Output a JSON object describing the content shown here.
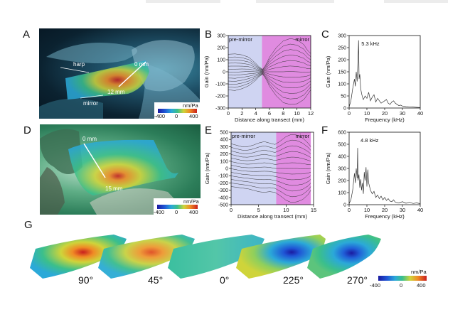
{
  "panels": {
    "A": {
      "label": "A",
      "annotations": [
        "harp",
        "mirror",
        "0 mm",
        "12 mm"
      ],
      "colorbar": {
        "unit": "nm/Pa",
        "ticks": [
          "-400",
          "0",
          "400"
        ]
      }
    },
    "B": {
      "label": "B",
      "region_labels": [
        "pre-mirror",
        "mirror"
      ]
    },
    "C": {
      "label": "C",
      "peak_label": "5.3 kHz"
    },
    "D": {
      "label": "D",
      "annotations": [
        "0 mm",
        "15 mm"
      ],
      "colorbar": {
        "unit": "nm/Pa",
        "ticks": [
          "-400",
          "0",
          "400"
        ]
      }
    },
    "E": {
      "label": "E",
      "region_labels": [
        "pre-mirror",
        "mirror"
      ]
    },
    "F": {
      "label": "F",
      "peak_label": "4.8 kHz"
    },
    "G": {
      "label": "G",
      "angles": [
        "90°",
        "45°",
        "0°",
        "225°",
        "270°"
      ],
      "colorbar": {
        "unit": "nm/Pa",
        "ticks": [
          "-400",
          "0",
          "400"
        ]
      }
    }
  },
  "colors": {
    "premirror_shade": "#cfd4f2",
    "mirror_shade": "#e08be0",
    "trace": "#333333",
    "colormap": [
      "#1a1aa0",
      "#1f56d6",
      "#2ba9d8",
      "#3bbf8b",
      "#cfd43a",
      "#f08a25",
      "#c81e1e"
    ]
  },
  "chart_data": [
    {
      "id": "B",
      "type": "line",
      "title": "",
      "xlabel": "Distance along transect (mm)",
      "ylabel": "Gain (nm/Pa)",
      "xlim": [
        0,
        12
      ],
      "ylim": [
        -300,
        300
      ],
      "xticks": [
        0,
        2,
        4,
        6,
        8,
        10,
        12
      ],
      "yticks": [
        -300,
        -200,
        -100,
        0,
        100,
        200,
        300
      ],
      "regions": [
        {
          "name": "pre-mirror",
          "from": 0,
          "to": 4.9
        },
        {
          "name": "mirror",
          "from": 4.9,
          "to": 12
        }
      ],
      "envelope": {
        "x": [
          0,
          1,
          2,
          3,
          4,
          4.5,
          5,
          5.5,
          6,
          7,
          8,
          9,
          10,
          11,
          11.5,
          12
        ],
        "upper": [
          145,
          148,
          140,
          120,
          70,
          40,
          20,
          60,
          120,
          200,
          255,
          275,
          265,
          225,
          180,
          150
        ],
        "lower": [
          -150,
          -155,
          -140,
          -115,
          -70,
          -40,
          -20,
          -60,
          -120,
          -200,
          -255,
          -270,
          -265,
          -230,
          -190,
          -150
        ]
      },
      "n_traces": 13
    },
    {
      "id": "C",
      "type": "line",
      "title": "",
      "xlabel": "Frequency (kHz)",
      "ylabel": "Gain (nm/Pa)",
      "xlim": [
        0,
        40
      ],
      "ylim": [
        0,
        300
      ],
      "xticks": [
        0,
        10,
        20,
        30,
        40
      ],
      "yticks": [
        0,
        50,
        100,
        150,
        200,
        250,
        300
      ],
      "series": [
        {
          "x": [
            0,
            1,
            2,
            3,
            3.5,
            4,
            4.5,
            5,
            5.3,
            5.6,
            6,
            6.5,
            7,
            7.5,
            8,
            9,
            10,
            11,
            12,
            13,
            14,
            15,
            16,
            17,
            18,
            19,
            20,
            21,
            22,
            23,
            24,
            25,
            26,
            27,
            28,
            29,
            30,
            32,
            34,
            36,
            38,
            40
          ],
          "y": [
            5,
            30,
            80,
            120,
            90,
            150,
            110,
            200,
            280,
            120,
            140,
            80,
            60,
            45,
            35,
            50,
            40,
            65,
            30,
            45,
            55,
            25,
            40,
            30,
            20,
            25,
            30,
            35,
            20,
            15,
            25,
            30,
            20,
            15,
            10,
            12,
            8,
            6,
            5,
            4,
            3,
            2
          ]
        }
      ],
      "peak": {
        "x": 5.3,
        "label": "5.3 kHz"
      }
    },
    {
      "id": "E",
      "type": "line",
      "title": "",
      "xlabel": "Distance along transect (mm)",
      "ylabel": "Gain (nm/Pa)",
      "xlim": [
        0,
        15
      ],
      "ylim": [
        -500,
        500
      ],
      "xticks": [
        0,
        5,
        10,
        15
      ],
      "yticks": [
        -500,
        -400,
        -300,
        -200,
        -100,
        0,
        100,
        200,
        300,
        400,
        500
      ],
      "regions": [
        {
          "name": "pre-mirror",
          "from": 0,
          "to": 8.2
        },
        {
          "name": "mirror",
          "from": 8.2,
          "to": 14.5
        }
      ],
      "envelope": {
        "x": [
          0,
          1,
          2,
          3,
          4,
          5,
          6,
          7,
          8,
          9,
          10,
          11,
          12,
          13,
          14,
          14.5
        ],
        "upper": [
          340,
          320,
          300,
          300,
          320,
          350,
          370,
          350,
          330,
          380,
          440,
          470,
          460,
          420,
          350,
          300
        ],
        "lower": [
          -250,
          -260,
          -270,
          -280,
          -300,
          -320,
          -330,
          -320,
          -330,
          -380,
          -440,
          -470,
          -460,
          -430,
          -360,
          -300
        ]
      },
      "n_traces": 13
    },
    {
      "id": "F",
      "type": "line",
      "title": "",
      "xlabel": "Frequency (kHz)",
      "ylabel": "Gain (nm/Pa)",
      "xlim": [
        0,
        40
      ],
      "ylim": [
        0,
        600
      ],
      "xticks": [
        0,
        10,
        20,
        30,
        40
      ],
      "yticks": [
        0,
        100,
        200,
        300,
        400,
        500,
        600
      ],
      "series": [
        {
          "x": [
            0,
            1,
            2,
            3,
            3.5,
            4,
            4.5,
            4.8,
            5,
            5.5,
            6,
            6.5,
            7,
            7.5,
            8,
            8.5,
            9,
            9.5,
            10,
            10.5,
            11,
            12,
            13,
            14,
            15,
            16,
            17,
            18,
            19,
            20,
            21,
            22,
            23,
            24,
            25,
            26,
            28,
            30,
            32,
            34,
            36,
            38,
            40
          ],
          "y": [
            10,
            40,
            120,
            260,
            180,
            300,
            220,
            470,
            200,
            250,
            140,
            210,
            120,
            180,
            90,
            270,
            200,
            310,
            150,
            290,
            180,
            120,
            90,
            110,
            60,
            80,
            50,
            70,
            40,
            60,
            35,
            50,
            30,
            25,
            40,
            20,
            15,
            25,
            12,
            20,
            10,
            15,
            8
          ]
        }
      ],
      "peak": {
        "x": 4.8,
        "label": "4.8 kHz"
      }
    }
  ]
}
